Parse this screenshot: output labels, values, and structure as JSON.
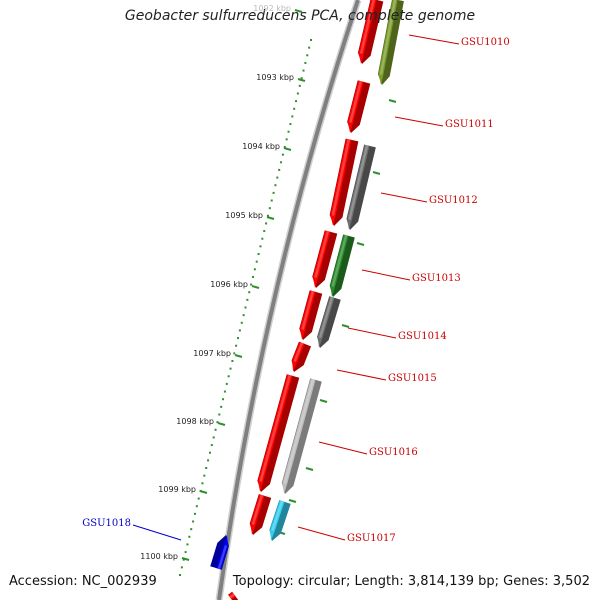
{
  "title": "Geobacter sulfurreducens PCA, complete genome",
  "footer": {
    "accession": "Accession: NC_002939",
    "summary": "Topology: circular; Length: 3,814,139 bp; Genes: 3,502"
  },
  "scale_ticks": [
    "1092 kbp",
    "1093 kbp",
    "1094 kbp",
    "1095 kbp",
    "1096 kbp",
    "1097 kbp",
    "1098 kbp",
    "1099 kbp",
    "1100 kbp"
  ],
  "genes": [
    {
      "label": "GSU1010",
      "strand": "forward",
      "color": "#7a9a2a"
    },
    {
      "label": "GSU1011",
      "strand": "forward",
      "color": "#ff0000"
    },
    {
      "label": "GSU1012",
      "strand": "forward",
      "color": "#6e6e6e"
    },
    {
      "label": "GSU1013",
      "strand": "forward",
      "color": "#2a8a2a"
    },
    {
      "label": "GSU1014",
      "strand": "forward",
      "color": "#6e6e6e"
    },
    {
      "label": "GSU1015",
      "strand": "forward",
      "color": "#ff0000"
    },
    {
      "label": "GSU1016",
      "strand": "forward",
      "color": "#bdbdbd"
    },
    {
      "label": "GSU1017",
      "strand": "forward",
      "color": "#33ccee"
    },
    {
      "label": "GSU1018",
      "strand": "reverse",
      "color": "#0000ee"
    }
  ],
  "colors": {
    "forward_label": "#cc0000",
    "reverse_label": "#0000cc",
    "cds_track": "#ff0000",
    "backbone": "#808080",
    "tick": "#2f8f2f"
  }
}
